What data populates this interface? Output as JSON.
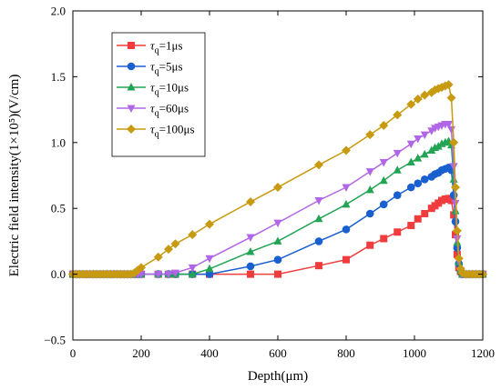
{
  "chart_data": {
    "type": "line",
    "title": "",
    "xlabel": "Depth(μm)",
    "ylabel": "Electric field intensity(1×10⁵)(V/cm)",
    "xlim": [
      0,
      1200
    ],
    "ylim": [
      -0.5,
      2.0
    ],
    "xticks": [
      0,
      200,
      400,
      600,
      800,
      1000,
      1200
    ],
    "yticks": [
      -0.5,
      0.0,
      0.5,
      1.0,
      1.5,
      2.0
    ],
    "xtick_labels": [
      "0",
      "200",
      "400",
      "600",
      "800",
      "1000",
      "1200"
    ],
    "ytick_labels": [
      "−0.5",
      "0.0",
      "0.5",
      "1.0",
      "1.5",
      "2.0"
    ],
    "grid": false,
    "legend_position": "top-left",
    "series": [
      {
        "name_symbol": "τ",
        "name_subscript": "q",
        "name_value": "=1μs",
        "color": "#f03c3c",
        "marker": "square",
        "x": [
          0,
          10,
          20,
          30,
          40,
          50,
          60,
          70,
          80,
          90,
          100,
          110,
          120,
          130,
          140,
          150,
          160,
          170,
          180,
          190,
          200,
          250,
          280,
          300,
          350,
          400,
          520,
          600,
          720,
          800,
          870,
          910,
          950,
          990,
          1010,
          1030,
          1050,
          1060,
          1070,
          1080,
          1090,
          1100,
          1108,
          1115,
          1120,
          1125,
          1130,
          1135,
          1140,
          1150,
          1160,
          1170,
          1180,
          1190,
          1200
        ],
        "y": [
          0,
          0,
          0,
          0,
          0,
          0,
          0,
          0,
          0,
          0,
          0,
          0,
          0,
          0,
          0,
          0,
          0,
          0,
          0,
          0,
          0,
          0,
          0,
          0,
          0,
          0,
          0,
          0,
          0.065,
          0.11,
          0.22,
          0.27,
          0.32,
          0.37,
          0.42,
          0.46,
          0.5,
          0.52,
          0.54,
          0.56,
          0.57,
          0.575,
          0.56,
          0.45,
          0.3,
          0.15,
          0.05,
          0.02,
          0,
          0,
          0,
          0,
          0,
          0,
          0
        ]
      },
      {
        "name_symbol": "τ",
        "name_subscript": "q",
        "name_value": "=5μs",
        "color": "#1a5fd0",
        "marker": "circle",
        "x": [
          0,
          10,
          20,
          30,
          40,
          50,
          60,
          70,
          80,
          90,
          100,
          110,
          120,
          130,
          140,
          150,
          160,
          170,
          180,
          190,
          200,
          250,
          280,
          300,
          350,
          400,
          520,
          600,
          720,
          800,
          870,
          910,
          950,
          990,
          1010,
          1030,
          1050,
          1060,
          1070,
          1080,
          1090,
          1100,
          1108,
          1115,
          1120,
          1125,
          1130,
          1135,
          1140,
          1150,
          1160,
          1170,
          1180,
          1190,
          1200
        ],
        "y": [
          0,
          0,
          0,
          0,
          0,
          0,
          0,
          0,
          0,
          0,
          0,
          0,
          0,
          0,
          0,
          0,
          0,
          0,
          0,
          0,
          0,
          0,
          0,
          0,
          0,
          0,
          0.06,
          0.11,
          0.25,
          0.34,
          0.46,
          0.53,
          0.6,
          0.66,
          0.69,
          0.72,
          0.74,
          0.76,
          0.77,
          0.79,
          0.8,
          0.81,
          0.79,
          0.6,
          0.4,
          0.2,
          0.08,
          0.03,
          0,
          0,
          0,
          0,
          0,
          0,
          0
        ]
      },
      {
        "name_symbol": "τ",
        "name_subscript": "q",
        "name_value": "=10μs",
        "color": "#22a454",
        "marker": "triangle-up",
        "x": [
          0,
          10,
          20,
          30,
          40,
          50,
          60,
          70,
          80,
          90,
          100,
          110,
          120,
          130,
          140,
          150,
          160,
          170,
          180,
          190,
          200,
          250,
          280,
          300,
          350,
          400,
          520,
          600,
          720,
          800,
          870,
          910,
          950,
          990,
          1010,
          1030,
          1050,
          1060,
          1070,
          1080,
          1090,
          1100,
          1108,
          1115,
          1120,
          1125,
          1130,
          1135,
          1140,
          1150,
          1160,
          1170,
          1180,
          1190,
          1200
        ],
        "y": [
          0,
          0,
          0,
          0,
          0,
          0,
          0,
          0,
          0,
          0,
          0,
          0,
          0,
          0,
          0,
          0,
          0,
          0,
          0,
          0,
          0,
          0,
          0,
          0,
          0,
          0.04,
          0.17,
          0.25,
          0.42,
          0.53,
          0.64,
          0.71,
          0.79,
          0.85,
          0.88,
          0.91,
          0.94,
          0.96,
          0.97,
          0.99,
          1.0,
          1.01,
          0.98,
          0.72,
          0.48,
          0.24,
          0.09,
          0.03,
          0,
          0,
          0,
          0,
          0,
          0,
          0
        ]
      },
      {
        "name_symbol": "τ",
        "name_subscript": "q",
        "name_value": "=60μs",
        "color": "#b066e6",
        "marker": "triangle-down",
        "x": [
          0,
          10,
          20,
          30,
          40,
          50,
          60,
          70,
          80,
          90,
          100,
          110,
          120,
          130,
          140,
          150,
          160,
          170,
          180,
          190,
          200,
          250,
          280,
          300,
          350,
          400,
          520,
          600,
          720,
          800,
          870,
          910,
          950,
          990,
          1010,
          1030,
          1050,
          1060,
          1070,
          1080,
          1090,
          1100,
          1108,
          1115,
          1120,
          1125,
          1130,
          1135,
          1140,
          1150,
          1160,
          1170,
          1180,
          1190,
          1200
        ],
        "y": [
          0,
          0,
          0,
          0,
          0,
          0,
          0,
          0,
          0,
          0,
          0,
          0,
          0,
          0,
          0,
          0,
          0,
          0,
          0,
          0,
          0,
          0,
          0,
          0.01,
          0.05,
          0.12,
          0.28,
          0.39,
          0.56,
          0.66,
          0.78,
          0.85,
          0.92,
          0.99,
          1.03,
          1.06,
          1.09,
          1.11,
          1.12,
          1.13,
          1.14,
          1.14,
          1.1,
          0.82,
          0.54,
          0.27,
          0.1,
          0.03,
          0,
          0,
          0,
          0,
          0,
          0,
          0
        ]
      },
      {
        "name_symbol": "τ",
        "name_subscript": "q",
        "name_value": "=100μs",
        "color": "#c89a10",
        "marker": "diamond",
        "x": [
          0,
          10,
          20,
          30,
          40,
          50,
          60,
          70,
          80,
          90,
          100,
          110,
          120,
          130,
          140,
          150,
          160,
          170,
          180,
          190,
          200,
          250,
          280,
          300,
          350,
          400,
          520,
          600,
          720,
          800,
          870,
          910,
          950,
          990,
          1010,
          1030,
          1050,
          1060,
          1070,
          1080,
          1090,
          1100,
          1108,
          1115,
          1120,
          1125,
          1130,
          1135,
          1140,
          1150,
          1160,
          1170,
          1180,
          1190,
          1200
        ],
        "y": [
          0,
          0,
          0,
          0,
          0,
          0,
          0,
          0,
          0,
          0,
          0,
          0,
          0,
          0,
          0,
          0,
          0,
          0,
          0.01,
          0.03,
          0.05,
          0.13,
          0.19,
          0.23,
          0.3,
          0.38,
          0.55,
          0.66,
          0.83,
          0.94,
          1.06,
          1.13,
          1.21,
          1.29,
          1.33,
          1.36,
          1.38,
          1.4,
          1.41,
          1.42,
          1.43,
          1.44,
          1.34,
          1.0,
          0.66,
          0.33,
          0.12,
          0.04,
          0.01,
          0,
          0,
          0,
          0,
          0,
          0
        ]
      }
    ]
  }
}
